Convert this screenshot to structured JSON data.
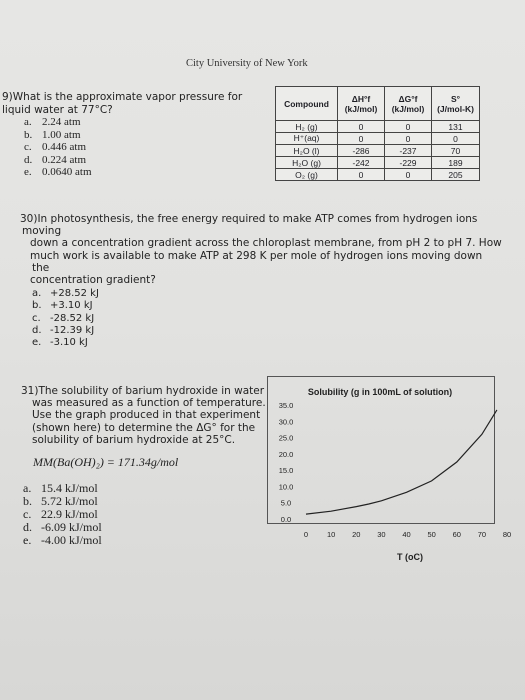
{
  "header": {
    "university": "City University of New York"
  },
  "q29": {
    "number": "9)",
    "stem": "What is the approximate vapor pressure for liquid water at 77°C?",
    "choices": [
      {
        "letter": "a.",
        "text": "2.24 atm"
      },
      {
        "letter": "b.",
        "text": "1.00 atm"
      },
      {
        "letter": "c.",
        "text": "0.446 atm"
      },
      {
        "letter": "d.",
        "text": "0.224 atm"
      },
      {
        "letter": "e.",
        "text": "0.0640 atm"
      }
    ]
  },
  "table": {
    "headers": {
      "compound": "Compound",
      "dh": "ΔH°f",
      "dh_unit": "(kJ/mol)",
      "dg": "ΔG°f",
      "dg_unit": "(kJ/mol)",
      "s": "S°",
      "s_unit": "(J/mol-K)"
    },
    "rows": [
      {
        "compound": "H₂ (g)",
        "dh": "0",
        "dg": "0",
        "s": "131"
      },
      {
        "compound": "H⁺(aq)",
        "dh": "0",
        "dg": "0",
        "s": "0"
      },
      {
        "compound": "H₂O (l)",
        "dh": "-286",
        "dg": "-237",
        "s": "70"
      },
      {
        "compound": "H₂O (g)",
        "dh": "-242",
        "dg": "-229",
        "s": "189"
      },
      {
        "compound": "O₂ (g)",
        "dh": "0",
        "dg": "0",
        "s": "205"
      }
    ]
  },
  "q30": {
    "line1": "30)In photosynthesis, the free energy required to make ATP comes from hydrogen ions moving",
    "line2": "down a concentration gradient across the chloroplast membrane, from pH 2 to pH 7. How",
    "line3": "much work is available to make ATP at 298 K per mole of hydrogen ions moving down the",
    "line4": "concentration gradient?",
    "choices": [
      {
        "letter": "a.",
        "text": "+28.52 kJ"
      },
      {
        "letter": "b.",
        "text": "+3.10 kJ"
      },
      {
        "letter": "c.",
        "text": "-28.52 kJ"
      },
      {
        "letter": "d.",
        "text": "-12.39 kJ"
      },
      {
        "letter": "e.",
        "text": "-3.10 kJ"
      }
    ]
  },
  "q31": {
    "line1": "31)The solubility of barium hydroxide in water",
    "line2": "was measured as a function of temperature.",
    "line3": "Use the graph produced in that experiment",
    "line4": "(shown here) to determine the ΔG° for the",
    "line5": "solubility of barium hydroxide at 25°C.",
    "formula": "MM(Ba(OH)₂) = 171.34g/mol",
    "choices": [
      {
        "letter": "a.",
        "text": "15.4 kJ/mol"
      },
      {
        "letter": "b.",
        "text": "5.72 kJ/mol"
      },
      {
        "letter": "c.",
        "text": "22.9 kJ/mol"
      },
      {
        "letter": "d.",
        "text": "-6.09 kJ/mol"
      },
      {
        "letter": "e.",
        "text": "-4.00 kJ/mol"
      }
    ]
  },
  "chart_data": {
    "type": "line",
    "title": "Solubility (g in 100mL of solution)",
    "xlabel": "T (oC)",
    "ylabel": "",
    "xlim": [
      0,
      80
    ],
    "ylim": [
      0,
      35
    ],
    "x_ticks": [
      "0",
      "10",
      "20",
      "30",
      "40",
      "50",
      "60",
      "70",
      "80"
    ],
    "y_ticks": [
      "35.0",
      "30.0",
      "25.0",
      "20.0",
      "15.0",
      "10.0",
      "5.0",
      "0.0"
    ],
    "grid": false,
    "series": [
      {
        "x": [
          0,
          10,
          20,
          25,
          30,
          40,
          50,
          60,
          70,
          76
        ],
        "y": [
          1.5,
          2.4,
          3.8,
          4.6,
          5.6,
          8.2,
          11.7,
          17.5,
          26.0,
          33.5
        ]
      }
    ],
    "line_color": "#222222"
  }
}
